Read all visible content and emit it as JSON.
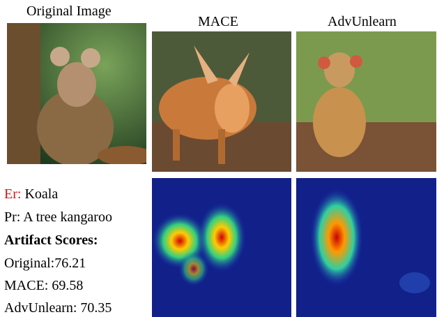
{
  "header": {
    "columns": [
      "Original Image",
      "MACE",
      "AdvUnlearn"
    ]
  },
  "caption": {
    "er_label": "Er:",
    "er_value": "Koala",
    "pr": "Pr: A tree kangaroo",
    "scores_title": "Artifact Scores:",
    "scores": [
      "Original:76.21",
      "MACE: 69.58",
      "AdvUnlearn: 70.35"
    ]
  }
}
